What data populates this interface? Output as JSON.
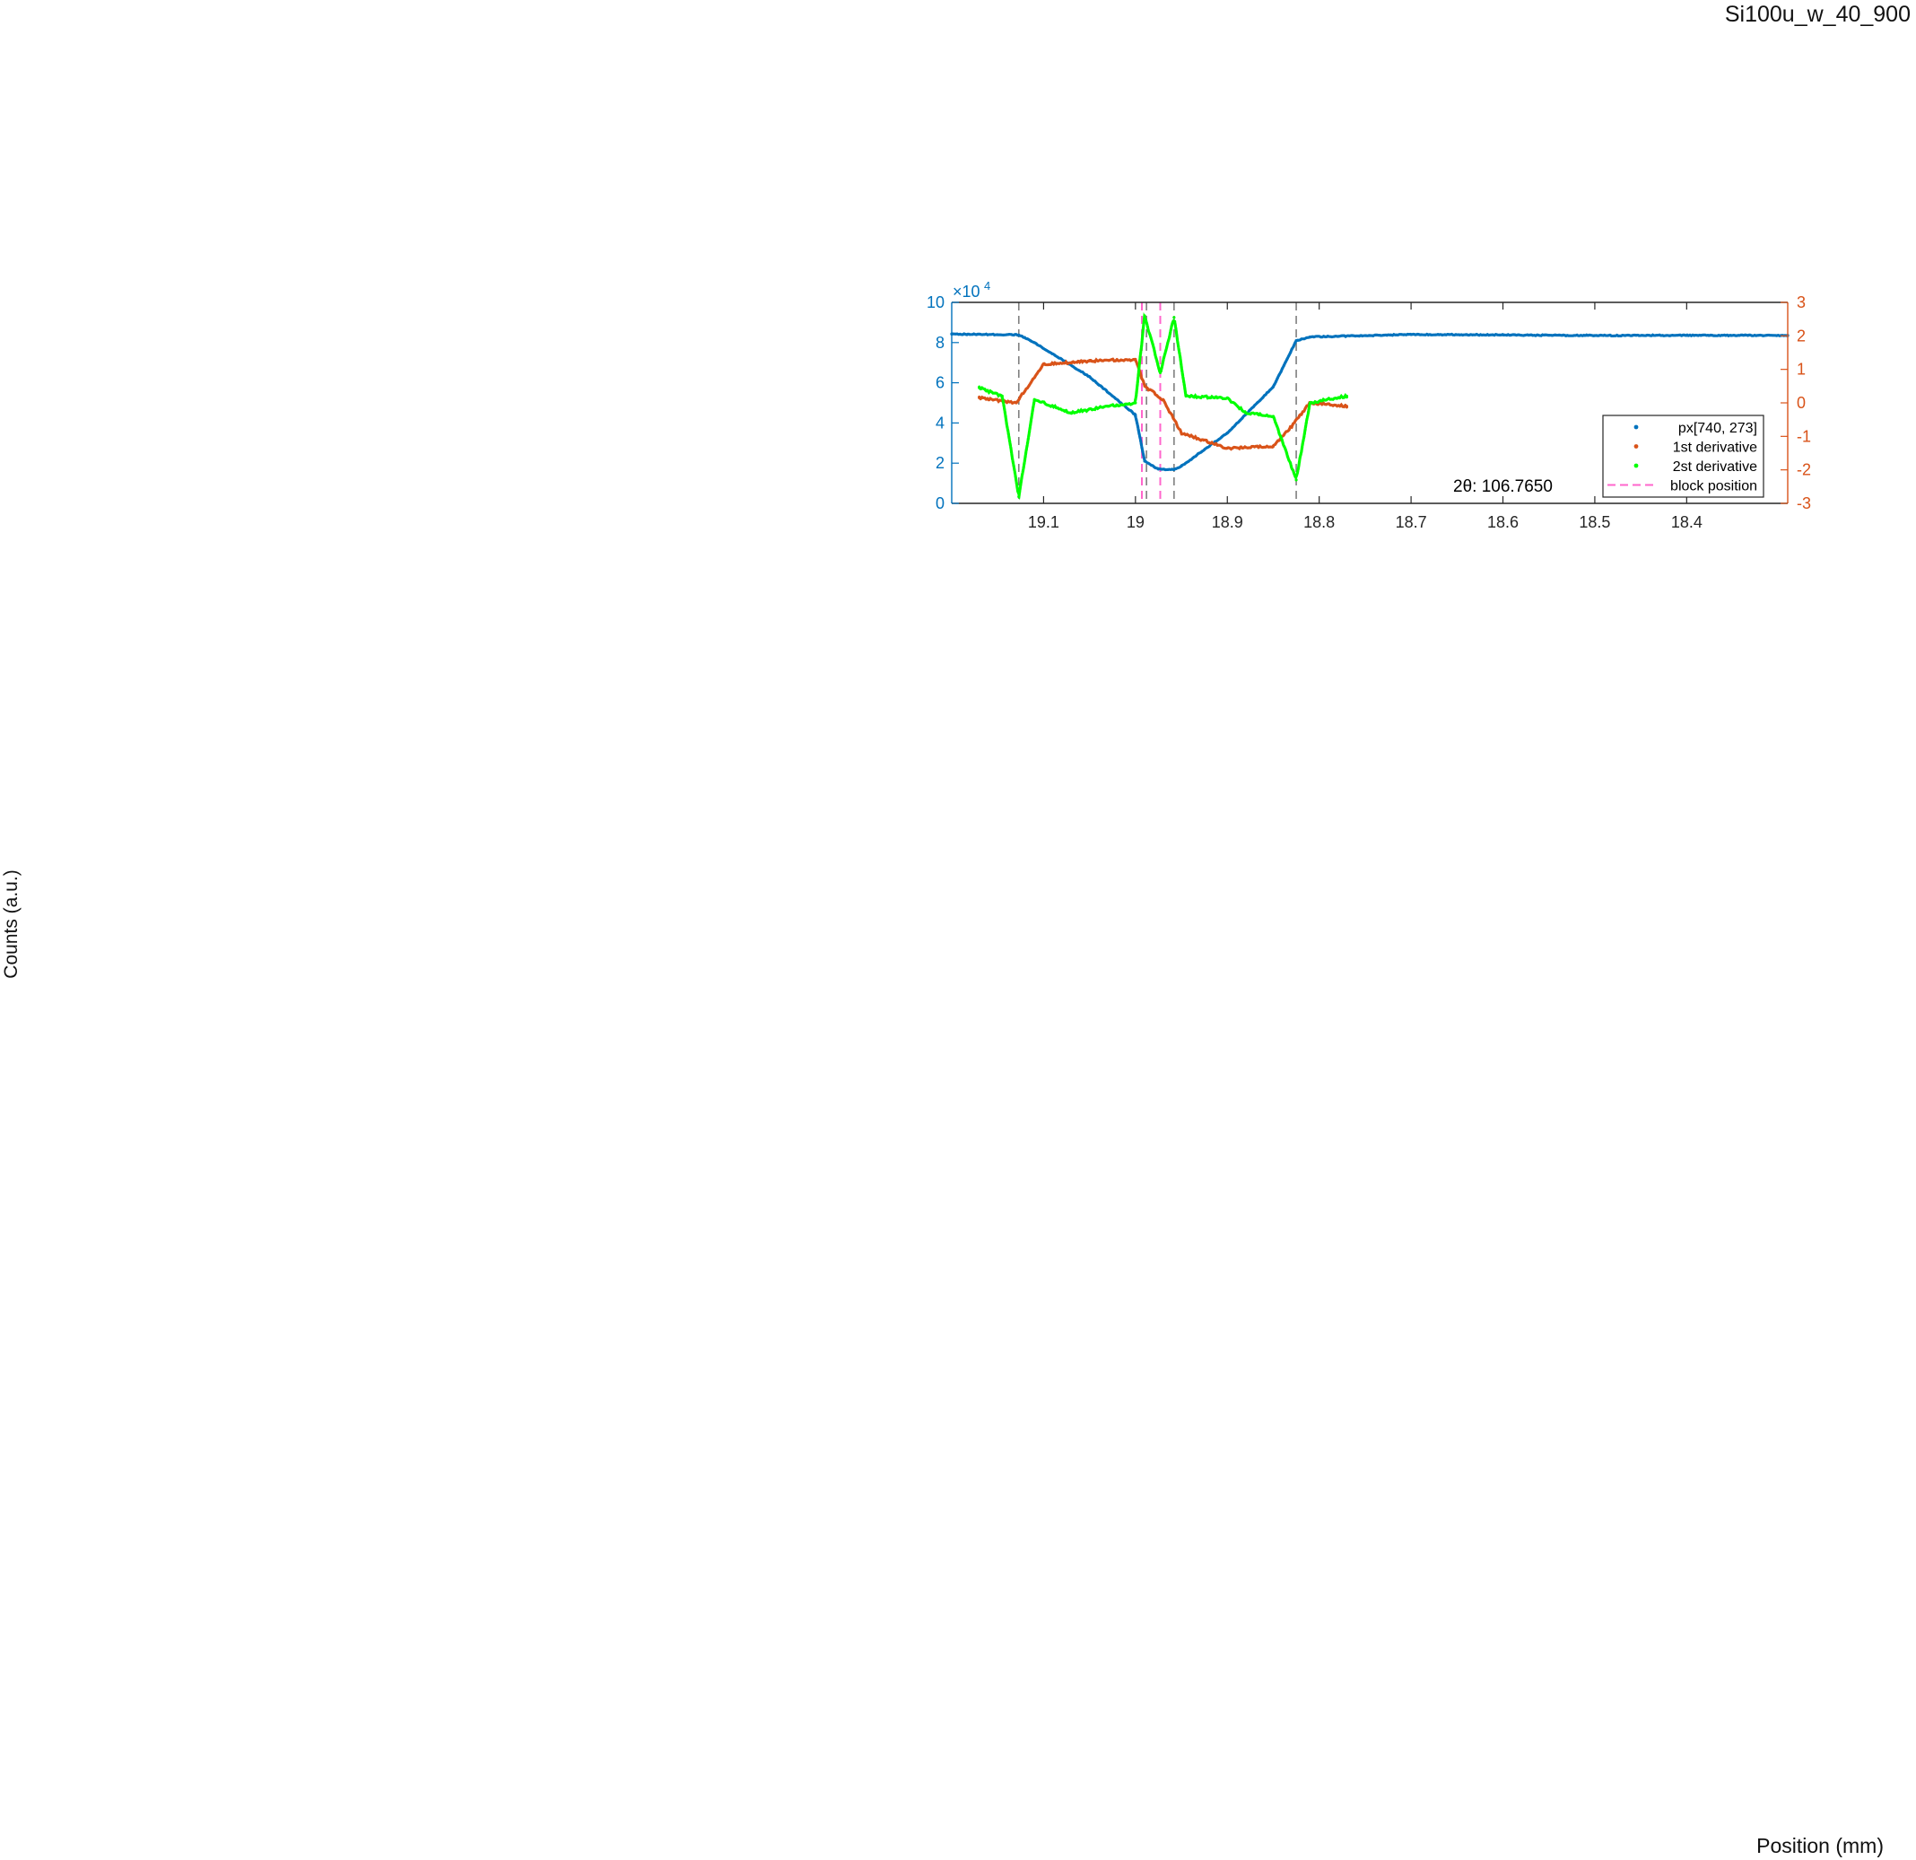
{
  "figure": {
    "title": "Si100u_w_40_900",
    "ylabel": "Counts (a.u.)",
    "xlabel": "Position (mm)"
  },
  "chart_data": {
    "type": "scatter",
    "x_reversed": true,
    "xlim": [
      19.2,
      18.29
    ],
    "x_ticks": [
      19.1,
      19,
      18.9,
      18.8,
      18.7,
      18.6,
      18.5,
      18.4
    ],
    "x_tick_labels": [
      "19.1",
      "19",
      "18.9",
      "18.8",
      "18.7",
      "18.6",
      "18.5",
      "18.4"
    ],
    "y_left": {
      "lim": [
        0,
        100000
      ],
      "ticks": [
        0,
        20000,
        40000,
        60000,
        80000,
        100000
      ],
      "tick_labels": [
        "0",
        "2",
        "4",
        "6",
        "8",
        "10"
      ],
      "exponent_label": "×10",
      "exponent": "4",
      "color": "#0072BD"
    },
    "y_right": {
      "lim": [
        -3,
        3
      ],
      "ticks": [
        -3,
        -2,
        -1,
        0,
        1,
        2,
        3
      ],
      "tick_labels": [
        "-3",
        "-2",
        "-1",
        "0",
        "1",
        "2",
        "3"
      ],
      "color": "#D95319"
    },
    "annotation": "2θ: 106.7650",
    "vlines_gray": [
      19.127,
      18.988,
      18.958,
      18.825
    ],
    "vlines_magenta": [
      18.973,
      18.993
    ],
    "series": [
      {
        "name": "px[740, 273]",
        "axis": "left",
        "color": "#0072BD",
        "points": [
          [
            19.2,
            84200
          ],
          [
            19.127,
            83800
          ],
          [
            19.11,
            80000
          ],
          [
            19.05,
            63000
          ],
          [
            19.0,
            44000
          ],
          [
            18.99,
            21000
          ],
          [
            18.975,
            17000
          ],
          [
            18.958,
            16800
          ],
          [
            18.95,
            18500
          ],
          [
            18.9,
            35000
          ],
          [
            18.85,
            58000
          ],
          [
            18.825,
            81000
          ],
          [
            18.81,
            82800
          ],
          [
            18.7,
            84000
          ],
          [
            18.6,
            83800
          ],
          [
            18.5,
            83500
          ],
          [
            18.4,
            83600
          ],
          [
            18.29,
            83600
          ]
        ]
      },
      {
        "name": "1st derivative",
        "axis": "right",
        "color": "#D95319",
        "points": [
          [
            19.17,
            0.15
          ],
          [
            19.13,
            0.0
          ],
          [
            19.1,
            1.15
          ],
          [
            19.05,
            1.25
          ],
          [
            19.0,
            1.3
          ],
          [
            18.99,
            0.5
          ],
          [
            18.97,
            0.1
          ],
          [
            18.95,
            -0.9
          ],
          [
            18.9,
            -1.35
          ],
          [
            18.85,
            -1.3
          ],
          [
            18.83,
            -0.7
          ],
          [
            18.81,
            0.0
          ],
          [
            18.77,
            -0.1
          ]
        ]
      },
      {
        "name": "2st derivative",
        "axis": "right",
        "color": "#00FF00",
        "points": [
          [
            19.17,
            0.45
          ],
          [
            19.145,
            0.2
          ],
          [
            19.127,
            -2.8
          ],
          [
            19.11,
            0.1
          ],
          [
            19.07,
            -0.3
          ],
          [
            19.03,
            -0.1
          ],
          [
            19.0,
            0.0
          ],
          [
            18.99,
            2.6
          ],
          [
            18.973,
            0.9
          ],
          [
            18.958,
            2.55
          ],
          [
            18.945,
            0.2
          ],
          [
            18.9,
            0.15
          ],
          [
            18.88,
            -0.3
          ],
          [
            18.85,
            -0.4
          ],
          [
            18.825,
            -2.3
          ],
          [
            18.81,
            0.0
          ],
          [
            18.77,
            0.2
          ]
        ]
      },
      {
        "name": "block position",
        "axis": "left",
        "color": "#FF66CC",
        "style": "dashed"
      }
    ],
    "legend_position": "bottom-right",
    "grid": false
  }
}
